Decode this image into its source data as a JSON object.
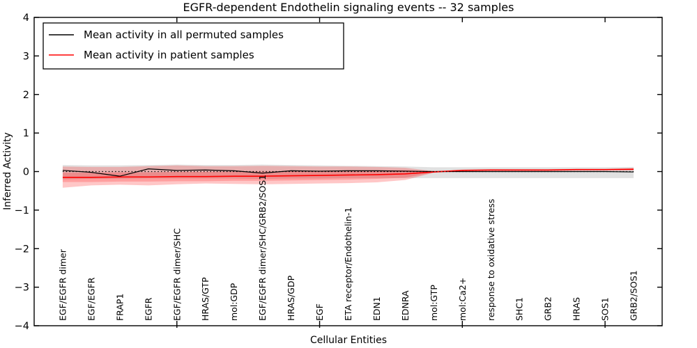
{
  "title": "EGFR-dependent Endothelin signaling events -- 32 samples",
  "legend": {
    "entries": [
      {
        "label": "Mean activity in all permuted samples",
        "color": "#000000"
      },
      {
        "label": "Mean activity in patient samples",
        "color": "#ff0000"
      }
    ]
  },
  "colors": {
    "permuted_line": "#000000",
    "patient_line": "#ff0000",
    "permuted_band": "#c8c8c8",
    "patient_band": "#ff0000",
    "axis": "#000000",
    "background": "#ffffff"
  },
  "chart_data": {
    "type": "line",
    "title": "EGFR-dependent Endothelin signaling events -- 32 samples",
    "xlabel": "Cellular Entities",
    "ylabel": "Inferred Activity",
    "ylim": [
      -4,
      4
    ],
    "yticks": [
      4,
      3,
      2,
      1,
      0,
      -1,
      -2,
      -3,
      -4
    ],
    "xtick_positions": [
      5,
      10,
      15,
      20
    ],
    "grid": false,
    "legend_position": "upper left",
    "categories": [
      "EGF/EGFR dimer",
      "EGF/EGFR",
      "FRAP1",
      "EGFR",
      "EGF/EGFR dimer/SHC",
      "HRAS/GTP",
      "mol:GDP",
      "EGF/EGFR dimer/SHC/GRB2/SOS1",
      "HRAS/GDP",
      "EGF",
      "ETA receptor/Endothelin-1",
      "EDN1",
      "EDNRA",
      "mol:GTP",
      "mol:Ca2+",
      "response to oxidative stress",
      "SHC1",
      "GRB2",
      "HRAS",
      "SOS1",
      "GRB2/SOS1"
    ],
    "series": [
      {
        "name": "Mean activity in all permuted samples",
        "color": "#000000",
        "style": "solid",
        "width": 1.2,
        "values": [
          0.03,
          -0.02,
          -0.12,
          0.07,
          0.03,
          0.04,
          0.02,
          -0.04,
          0.02,
          0.01,
          0.02,
          0.02,
          0.01,
          0.0,
          0.0,
          0.0,
          0.0,
          0.0,
          0.0,
          0.0,
          -0.01
        ]
      },
      {
        "name": "Mean activity in patient samples",
        "color": "#ff0000",
        "style": "solid",
        "width": 1.6,
        "values": [
          -0.15,
          -0.15,
          -0.14,
          -0.14,
          -0.13,
          -0.13,
          -0.12,
          -0.12,
          -0.11,
          -0.1,
          -0.09,
          -0.08,
          -0.06,
          -0.01,
          0.03,
          0.04,
          0.04,
          0.04,
          0.05,
          0.05,
          0.06
        ]
      },
      {
        "name": "zero baseline",
        "color": "#000000",
        "style": "dotted",
        "width": 1.2,
        "values": [
          0,
          0,
          0,
          0,
          0,
          0,
          0,
          0,
          0,
          0,
          0,
          0,
          0,
          0,
          0,
          0,
          0,
          0,
          0,
          0,
          0
        ]
      }
    ],
    "bands": [
      {
        "name": "permuted samples range",
        "color": "#c8c8c8",
        "opacity": 0.55,
        "upper": [
          0.17,
          0.16,
          0.16,
          0.17,
          0.18,
          0.17,
          0.17,
          0.18,
          0.17,
          0.16,
          0.15,
          0.14,
          0.13,
          0.11,
          0.11,
          0.11,
          0.11,
          0.11,
          0.11,
          0.11,
          0.12
        ],
        "lower": [
          -0.2,
          -0.19,
          -0.19,
          -0.18,
          -0.18,
          -0.18,
          -0.18,
          -0.19,
          -0.18,
          -0.18,
          -0.17,
          -0.17,
          -0.17,
          -0.17,
          -0.17,
          -0.17,
          -0.17,
          -0.17,
          -0.17,
          -0.17,
          -0.17
        ]
      },
      {
        "name": "patient samples outer spread",
        "color": "#ff0000",
        "opacity": 0.22,
        "upper": [
          0.13,
          0.12,
          0.12,
          0.14,
          0.16,
          0.14,
          0.14,
          0.15,
          0.14,
          0.13,
          0.13,
          0.12,
          0.1,
          0.01,
          0.05,
          0.06,
          0.06,
          0.06,
          0.07,
          0.07,
          0.09
        ],
        "lower": [
          -0.42,
          -0.36,
          -0.34,
          -0.36,
          -0.33,
          -0.31,
          -0.32,
          -0.33,
          -0.32,
          -0.31,
          -0.3,
          -0.28,
          -0.22,
          -0.03,
          0.01,
          0.02,
          0.02,
          0.02,
          0.03,
          0.03,
          0.03
        ]
      },
      {
        "name": "patient samples inner spread",
        "color": "#ff0000",
        "opacity": 0.2,
        "upper": [
          -0.03,
          -0.03,
          -0.02,
          -0.02,
          -0.01,
          -0.01,
          0.0,
          0.0,
          0.01,
          0.02,
          0.03,
          0.03,
          0.04,
          0.0,
          0.04,
          0.05,
          0.05,
          0.05,
          0.06,
          0.06,
          0.08
        ],
        "lower": [
          -0.27,
          -0.27,
          -0.26,
          -0.26,
          -0.25,
          -0.25,
          -0.24,
          -0.24,
          -0.23,
          -0.22,
          -0.21,
          -0.19,
          -0.16,
          -0.02,
          0.02,
          0.03,
          0.03,
          0.03,
          0.04,
          0.04,
          0.04
        ]
      }
    ]
  }
}
